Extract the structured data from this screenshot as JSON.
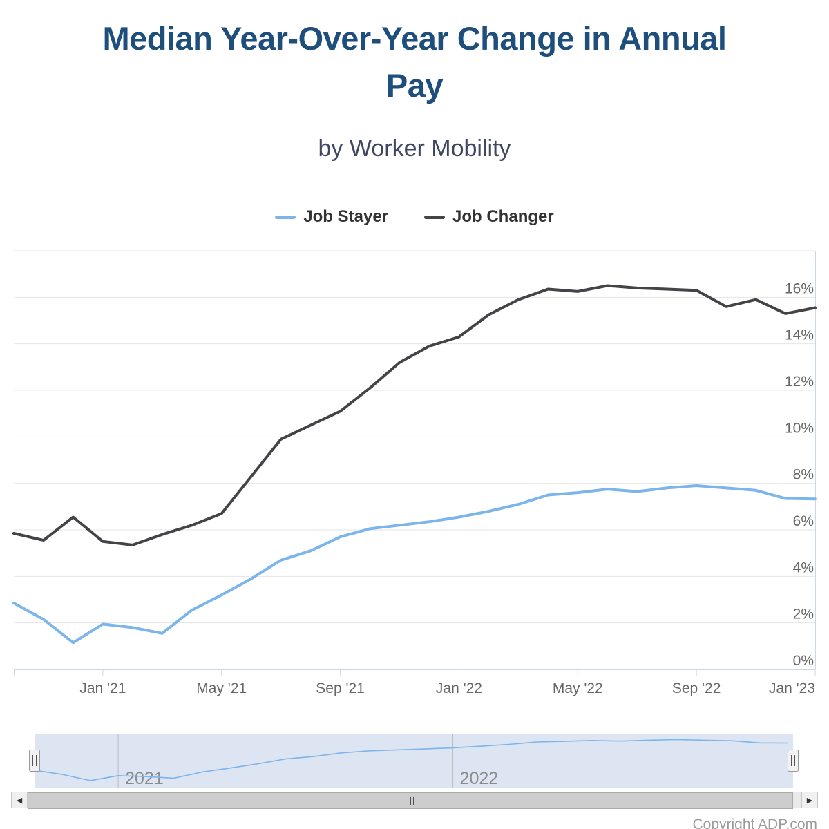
{
  "header": {
    "title": "Median Year-Over-Year Change in Annual Pay",
    "subtitle": "by Worker Mobility"
  },
  "legend": {
    "items": [
      {
        "label": "Job Stayer",
        "color": "#7cb5ec"
      },
      {
        "label": "Job Changer",
        "color": "#434348"
      }
    ]
  },
  "chart_data": {
    "type": "line",
    "title": "Median Year-Over-Year Change in Annual Pay",
    "subtitle": "by Worker Mobility",
    "x": [
      "Oct '20",
      "Nov '20",
      "Dec '20",
      "Jan '21",
      "Feb '21",
      "Mar '21",
      "Apr '21",
      "May '21",
      "Jun '21",
      "Jul '21",
      "Aug '21",
      "Sep '21",
      "Oct '21",
      "Nov '21",
      "Dec '21",
      "Jan '22",
      "Feb '22",
      "Mar '22",
      "Apr '22",
      "May '22",
      "Jun '22",
      "Jul '22",
      "Aug '22",
      "Sep '22",
      "Oct '22",
      "Nov '22",
      "Dec '22",
      "Jan '23"
    ],
    "series": [
      {
        "name": "Job Stayer",
        "color": "#7cb5ec",
        "values": [
          2.85,
          2.15,
          1.15,
          1.95,
          1.8,
          1.55,
          2.55,
          3.2,
          3.9,
          4.7,
          5.1,
          5.7,
          6.05,
          6.2,
          6.35,
          6.55,
          6.8,
          7.1,
          7.5,
          7.6,
          7.75,
          7.65,
          7.8,
          7.9,
          7.8,
          7.7,
          7.35,
          7.33
        ]
      },
      {
        "name": "Job Changer",
        "color": "#434348",
        "values": [
          5.85,
          5.55,
          6.55,
          5.5,
          5.35,
          5.8,
          6.2,
          6.7,
          8.3,
          9.9,
          10.5,
          11.1,
          12.1,
          13.2,
          13.9,
          14.3,
          15.25,
          15.9,
          16.35,
          16.25,
          16.5,
          16.4,
          16.35,
          16.3,
          15.6,
          15.9,
          15.3,
          15.55
        ]
      }
    ],
    "xtick_labels": [
      "Jan '21",
      "May '21",
      "Sep '21",
      "Jan '22",
      "May '22",
      "Sep '22",
      "Jan '23"
    ],
    "xtick_indices": [
      3,
      7,
      11,
      15,
      19,
      23,
      27
    ],
    "ytick_labels": [
      "0%",
      "2%",
      "4%",
      "6%",
      "8%",
      "10%",
      "12%",
      "14%",
      "16%"
    ],
    "ytick_values": [
      0,
      2,
      4,
      6,
      8,
      10,
      12,
      14,
      16
    ],
    "ylim": [
      0,
      18
    ],
    "grid": true,
    "legend_position": "top",
    "yaxis_side": "right",
    "yaxis_format": "{value}%"
  },
  "navigator": {
    "series_shown": "Job Stayer",
    "year_labels": [
      "2021",
      "2022"
    ],
    "year_month_indices": [
      3,
      15
    ],
    "selection": "full range selected"
  },
  "scrollbar": {
    "left_arrow": "◀",
    "right_arrow": "▶"
  },
  "footer": {
    "copyright": "Copyright ADP.com"
  },
  "colors": {
    "series_blue": "#7cb5ec",
    "series_dark": "#434348",
    "grid": "#e6e6e6",
    "axis": "#ccd6eb",
    "axis_label": "#666666",
    "title": "#1e4e7c",
    "subtitle": "#3f4660",
    "legend_text": "#333333",
    "nav_mask": "rgba(102,133,194,0.22)",
    "nav_outline": "#cccccc",
    "nav_year_line": "#bcbcbc",
    "nav_year_text": "#8a8a8a",
    "handle_fill": "#f2f2f2",
    "handle_stroke": "#999999",
    "copyright": "#9b9b9b"
  }
}
